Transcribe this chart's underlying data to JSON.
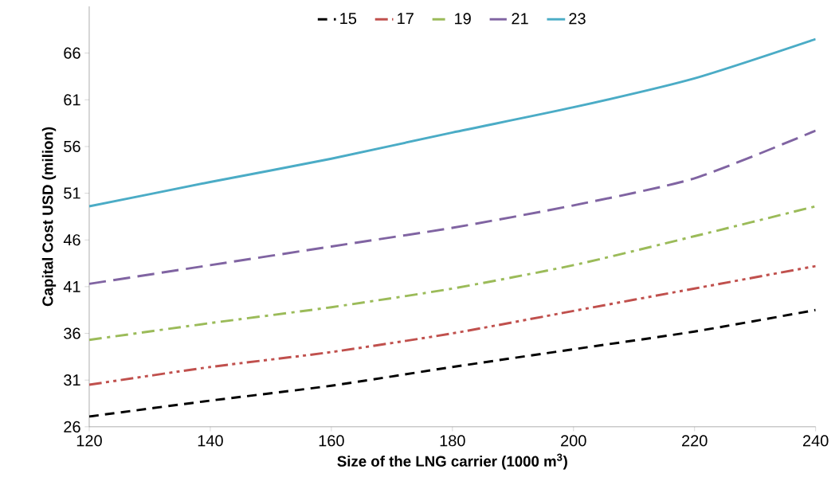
{
  "chart_data": {
    "type": "line",
    "xlabel": "Size of the LNG carrier (1000 m$^{3}$)",
    "ylabel": "Capital Cost  USD (milion)",
    "x": [
      120,
      140,
      160,
      180,
      200,
      220,
      240
    ],
    "series": [
      {
        "name": "15",
        "color": "#000000",
        "line_style": "dashed",
        "values": [
          27.1,
          28.8,
          30.4,
          32.4,
          34.3,
          36.2,
          38.5
        ]
      },
      {
        "name": "17",
        "color": "#c0504d",
        "line_style": "dashdotdot",
        "values": [
          30.5,
          32.4,
          34.0,
          36.0,
          38.4,
          40.8,
          43.2
        ]
      },
      {
        "name": "19",
        "color": "#9bbb59",
        "line_style": "dashdot",
        "values": [
          35.3,
          37.1,
          38.8,
          40.8,
          43.3,
          46.4,
          49.6
        ]
      },
      {
        "name": "21",
        "color": "#8064a2",
        "line_style": "longdashed",
        "values": [
          41.3,
          43.3,
          45.3,
          47.3,
          49.7,
          52.6,
          57.7
        ]
      },
      {
        "name": "23",
        "color": "#4bacc6",
        "line_style": "solid",
        "values": [
          49.6,
          52.2,
          54.7,
          57.5,
          60.2,
          63.3,
          67.5
        ]
      }
    ],
    "xlim": [
      120,
      240
    ],
    "ylim": [
      26,
      71
    ],
    "xticks": [
      120,
      140,
      160,
      180,
      200,
      220,
      240
    ],
    "yticks": [
      26,
      31,
      36,
      41,
      46,
      51,
      56,
      61,
      66
    ],
    "grid": false,
    "legend": "top",
    "marker": "none"
  }
}
